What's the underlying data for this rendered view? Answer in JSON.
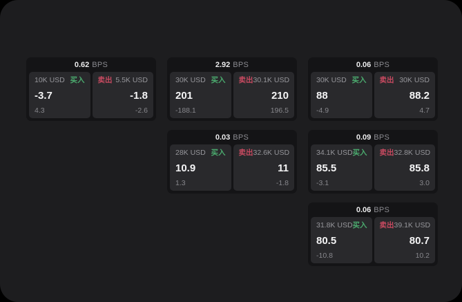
{
  "labels": {
    "bps_suffix": "BPS",
    "buy": "买入",
    "sell": "卖出"
  },
  "colors": {
    "background": "#000000",
    "panel": "#1d1d1f",
    "card": "#141416",
    "pane": "#29292c",
    "buy": "#4baa6e",
    "sell": "#c74a60",
    "value_text": "#f4f4f5",
    "muted_text": "#96969b"
  },
  "cards": [
    {
      "bps": "0.62",
      "col": 1,
      "row": 1,
      "buy": {
        "notional": "10K USD",
        "value": "-3.7",
        "delta": "4.3"
      },
      "sell": {
        "notional": "5.5K USD",
        "value": "-1.8",
        "delta": "-2.6"
      }
    },
    {
      "bps": "2.92",
      "col": 2,
      "row": 1,
      "buy": {
        "notional": "30K USD",
        "value": "201",
        "delta": "-188.1"
      },
      "sell": {
        "notional": "30.1K USD",
        "value": "210",
        "delta": "196.5"
      }
    },
    {
      "bps": "0.06",
      "col": 3,
      "row": 1,
      "buy": {
        "notional": "30K USD",
        "value": "88",
        "delta": "-4.9"
      },
      "sell": {
        "notional": "30K USD",
        "value": "88.2",
        "delta": "4.7"
      }
    },
    {
      "bps": "0.03",
      "col": 2,
      "row": 2,
      "buy": {
        "notional": "28K USD",
        "value": "10.9",
        "delta": "1.3"
      },
      "sell": {
        "notional": "32.6K USD",
        "value": "11",
        "delta": "-1.8"
      }
    },
    {
      "bps": "0.09",
      "col": 3,
      "row": 2,
      "buy": {
        "notional": "34.1K USD",
        "value": "85.5",
        "delta": "-3.1"
      },
      "sell": {
        "notional": "32.8K USD",
        "value": "85.8",
        "delta": "3.0"
      }
    },
    {
      "bps": "0.06",
      "col": 3,
      "row": 3,
      "buy": {
        "notional": "31.8K USD",
        "value": "80.5",
        "delta": "-10.8"
      },
      "sell": {
        "notional": "39.1K USD",
        "value": "80.7",
        "delta": "10.2"
      }
    }
  ]
}
